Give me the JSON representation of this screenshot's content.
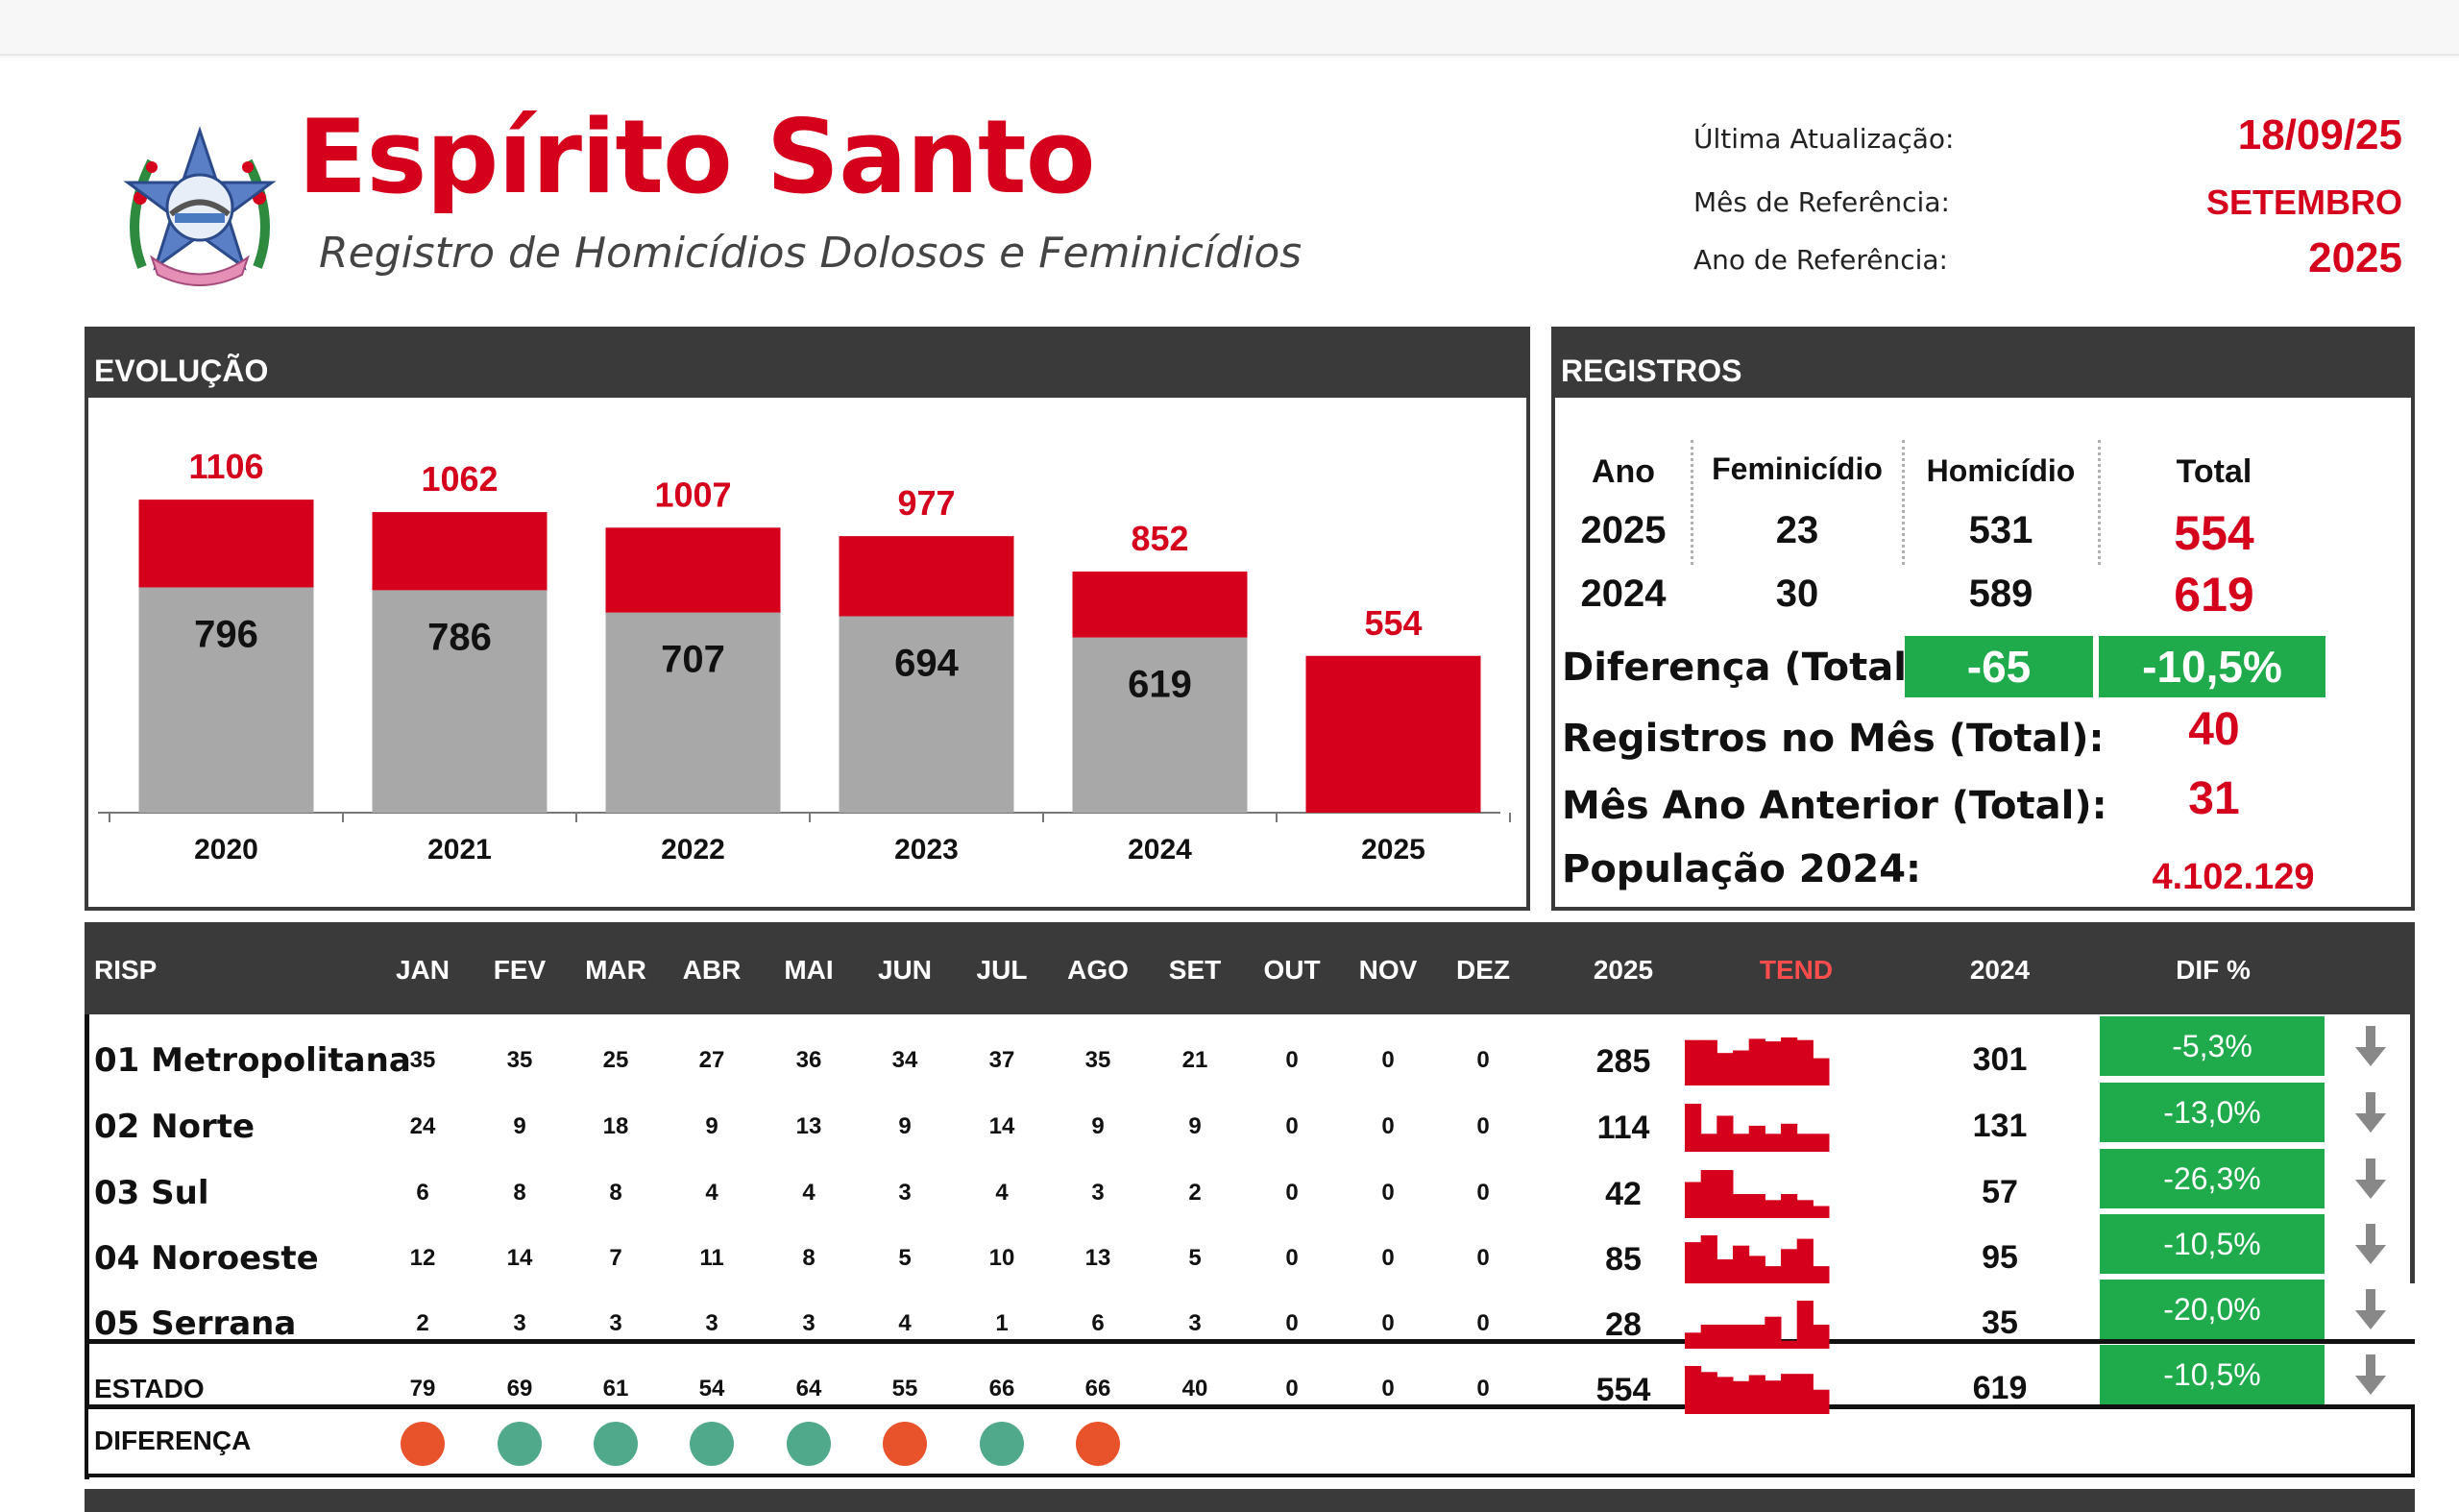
{
  "header": {
    "title": "Espírito Santo",
    "subtitle": "Registro de Homicídios Dolosos e Feminicídios",
    "last_update_label": "Última Atualização:",
    "last_update_value": "18/09/25",
    "ref_month_label": "Mês de Referência:",
    "ref_month_value": "SETEMBRO",
    "ref_year_label": "Ano de Referência:",
    "ref_year_value": "2025"
  },
  "evolucao": {
    "title": "EVOLUÇÃO"
  },
  "chart_data": {
    "type": "bar",
    "stacked": true,
    "categories": [
      "2020",
      "2021",
      "2022",
      "2023",
      "2024",
      "2025"
    ],
    "totals": [
      1106,
      1062,
      1007,
      977,
      852,
      554
    ],
    "series": [
      {
        "values": [
          796,
          786,
          707,
          694,
          619,
          null
        ],
        "color": "#a9a8a8"
      },
      {
        "values": [
          310,
          276,
          300,
          283,
          233,
          554
        ],
        "color": "#d4001c"
      }
    ],
    "ylim": [
      0,
      1200
    ],
    "grid": false,
    "legend": "none"
  },
  "registros": {
    "title": "REGISTROS",
    "col_ano": "Ano",
    "col_feminicidio": "Feminicídio",
    "col_homicidio": "Homicídio",
    "col_total": "Total",
    "rows": [
      {
        "ano": "2025",
        "feminicidio": "23",
        "homicidio": "531",
        "total": "554"
      },
      {
        "ano": "2024",
        "feminicidio": "30",
        "homicidio": "589",
        "total": "619"
      }
    ],
    "diferenca_label": "Diferença (Total):",
    "diferenca_abs": "-65",
    "diferenca_pct": "-10,5%",
    "mes_label": "Registros no Mês (Total):",
    "mes_value": "40",
    "mes_anterior_label": "Mês Ano Anterior (Total):",
    "mes_anterior_value": "31",
    "populacao_label": "População 2024:",
    "populacao_value": "4.102.129"
  },
  "tabela": {
    "headers": {
      "risp": "RISP",
      "months": [
        "JAN",
        "FEV",
        "MAR",
        "ABR",
        "MAI",
        "JUN",
        "JUL",
        "AGO",
        "SET",
        "OUT",
        "NOV",
        "DEZ"
      ],
      "y2025": "2025",
      "tend": "TEND",
      "y2024": "2024",
      "dif": "DIF %"
    },
    "rows": [
      {
        "name": "01 Metropolitana",
        "months": [
          "35",
          "35",
          "25",
          "27",
          "36",
          "34",
          "37",
          "35",
          "21",
          "0",
          "0",
          "0"
        ],
        "y2025": "285",
        "y2024": "301",
        "dif": "-5,3%"
      },
      {
        "name": "02 Norte",
        "months": [
          "24",
          "9",
          "18",
          "9",
          "13",
          "9",
          "14",
          "9",
          "9",
          "0",
          "0",
          "0"
        ],
        "y2025": "114",
        "y2024": "131",
        "dif": "-13,0%"
      },
      {
        "name": "03 Sul",
        "months": [
          "6",
          "8",
          "8",
          "4",
          "4",
          "3",
          "4",
          "3",
          "2",
          "0",
          "0",
          "0"
        ],
        "y2025": "42",
        "y2024": "57",
        "dif": "-26,3%"
      },
      {
        "name": "04 Noroeste",
        "months": [
          "12",
          "14",
          "7",
          "11",
          "8",
          "5",
          "10",
          "13",
          "5",
          "0",
          "0",
          "0"
        ],
        "y2025": "85",
        "y2024": "95",
        "dif": "-10,5%"
      },
      {
        "name": "05 Serrana",
        "months": [
          "2",
          "3",
          "3",
          "3",
          "3",
          "4",
          "1",
          "6",
          "3",
          "0",
          "0",
          "0"
        ],
        "y2025": "28",
        "y2024": "35",
        "dif": "-20,0%"
      },
      {
        "name": "ESTADO",
        "months": [
          "79",
          "69",
          "61",
          "54",
          "64",
          "55",
          "66",
          "66",
          "40",
          "0",
          "0",
          "0"
        ],
        "y2025": "554",
        "y2024": "619",
        "dif": "-10,5%"
      }
    ],
    "diferenca_label": "DIFERENÇA",
    "diferenca_status": [
      "up",
      "down",
      "down",
      "down",
      "down",
      "up",
      "down",
      "up"
    ],
    "colors": {
      "up": "#e8532c",
      "down": "#4fa98a",
      "accent": "#d4001c",
      "green": "#1faa4b"
    }
  }
}
